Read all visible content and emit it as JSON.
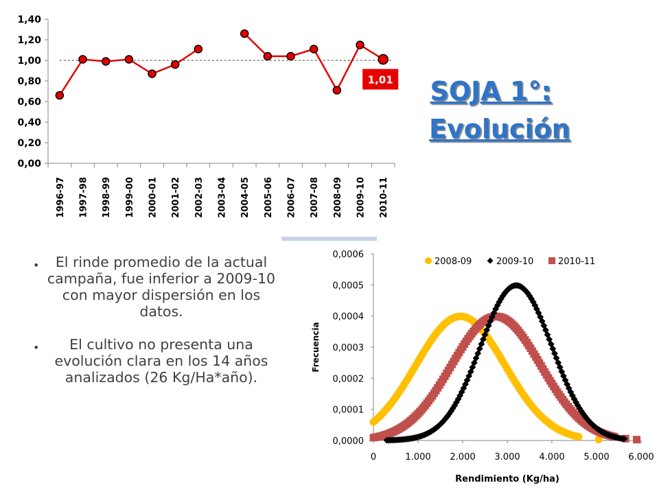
{
  "slide": {
    "title_line1": "SOJA 1°:",
    "title_line2": "Evolución",
    "bullets": [
      "El rinde promedio de la actual campaña, fue inferior a 2009-10 con mayor dispersión en los datos.",
      "El cultivo no presenta una evolución clara en los 14 años analizados (26 Kg/Ha*año)."
    ],
    "icons": {
      "bullet": "bullet-dot-icon"
    }
  },
  "chart_data": [
    {
      "type": "line",
      "categories": [
        "1996-97",
        "1997-98",
        "1998-99",
        "1999-00",
        "2000-01",
        "2001-02",
        "2002-03",
        "2003-04",
        "2004-05",
        "2005-06",
        "2006-07",
        "2007-08",
        "2008-09",
        "2009-10",
        "2010-11"
      ],
      "values": [
        0.66,
        1.01,
        0.99,
        1.01,
        0.87,
        0.96,
        1.11,
        null,
        1.26,
        1.04,
        1.04,
        1.11,
        0.71,
        1.15,
        1.01
      ],
      "ylim": [
        0,
        1.4
      ],
      "yticks": [
        "0,00",
        "0,20",
        "0,40",
        "0,60",
        "0,80",
        "1,00",
        "1,20",
        "1,40"
      ],
      "reference_line": 1.0,
      "callout": "1,01",
      "grid": false,
      "colors": {
        "line": "#e60000",
        "marker": "#e60000",
        "callout_bg": "#e60000",
        "reference": "#404040"
      }
    },
    {
      "type": "scatter",
      "xlabel": "Rendimiento (Kg/ha)",
      "ylabel": "Frecuencia",
      "xlim": [
        0,
        6000
      ],
      "ylim": [
        0,
        0.0006
      ],
      "xticks": [
        "0",
        "1.000",
        "2.000",
        "3.000",
        "4.000",
        "5.000",
        "6.000"
      ],
      "yticks": [
        "0,0000",
        "0,0001",
        "0,0002",
        "0,0003",
        "0,0004",
        "0,0005",
        "0,0006"
      ],
      "legend_position": "top",
      "series": [
        {
          "name": "2008-09",
          "marker": "circle",
          "color": "#ffc000",
          "mean": 1950,
          "sd": 1000,
          "x_range": [
            0,
            4600
          ],
          "outlier_x": [
            5050
          ]
        },
        {
          "name": "2009-10",
          "marker": "diamond",
          "color": "#000000",
          "mean": 3200,
          "sd": 800,
          "x_range": [
            300,
            5650
          ],
          "outlier_x": []
        },
        {
          "name": "2010-11",
          "marker": "square",
          "color": "#c0504d",
          "mean": 2750,
          "sd": 1000,
          "x_range": [
            0,
            5400
          ],
          "outlier_x": [
            5650,
            5900
          ]
        }
      ]
    }
  ]
}
